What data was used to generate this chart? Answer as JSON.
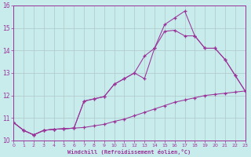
{
  "xlabel": "Windchill (Refroidissement éolien,°C)",
  "background_color": "#c8ecec",
  "line_color": "#993399",
  "grid_color": "#b0c8c8",
  "xlim": [
    0,
    23
  ],
  "ylim": [
    10,
    16
  ],
  "xticks": [
    0,
    1,
    2,
    3,
    4,
    5,
    6,
    7,
    8,
    9,
    10,
    11,
    12,
    13,
    14,
    15,
    16,
    17,
    18,
    19,
    20,
    21,
    22,
    23
  ],
  "yticks": [
    10,
    11,
    12,
    13,
    14,
    15,
    16
  ],
  "line1_x": [
    0,
    1,
    2,
    3,
    4,
    5,
    6,
    7,
    8,
    9,
    10,
    11,
    12,
    13,
    14,
    15,
    16,
    17,
    18,
    19,
    20,
    21,
    22,
    23
  ],
  "line1_y": [
    10.8,
    10.45,
    10.25,
    10.45,
    10.5,
    10.52,
    10.55,
    10.58,
    10.65,
    10.72,
    10.85,
    10.95,
    11.1,
    11.25,
    11.4,
    11.55,
    11.7,
    11.8,
    11.9,
    12.0,
    12.05,
    12.1,
    12.15,
    12.2
  ],
  "line2_x": [
    0,
    1,
    2,
    3,
    4,
    5,
    6,
    7,
    8,
    9,
    10,
    11,
    12,
    13,
    14,
    15,
    16,
    17,
    18,
    19,
    20,
    21,
    22,
    23
  ],
  "line2_y": [
    10.8,
    10.45,
    10.25,
    10.45,
    10.5,
    10.52,
    10.55,
    11.75,
    11.85,
    11.95,
    12.5,
    12.75,
    13.0,
    12.75,
    14.1,
    14.85,
    14.9,
    14.65,
    14.65,
    14.1,
    14.1,
    13.6,
    12.9,
    12.2
  ],
  "line3_x": [
    0,
    1,
    2,
    3,
    4,
    5,
    6,
    7,
    8,
    9,
    10,
    11,
    12,
    13,
    14,
    15,
    16,
    17,
    18,
    19,
    20,
    21,
    22,
    23
  ],
  "line3_y": [
    10.8,
    10.45,
    10.25,
    10.45,
    10.5,
    10.52,
    10.55,
    11.75,
    11.85,
    11.95,
    12.5,
    12.75,
    13.0,
    13.75,
    14.1,
    15.15,
    15.45,
    15.75,
    14.65,
    14.1,
    14.1,
    13.6,
    12.9,
    12.2
  ]
}
